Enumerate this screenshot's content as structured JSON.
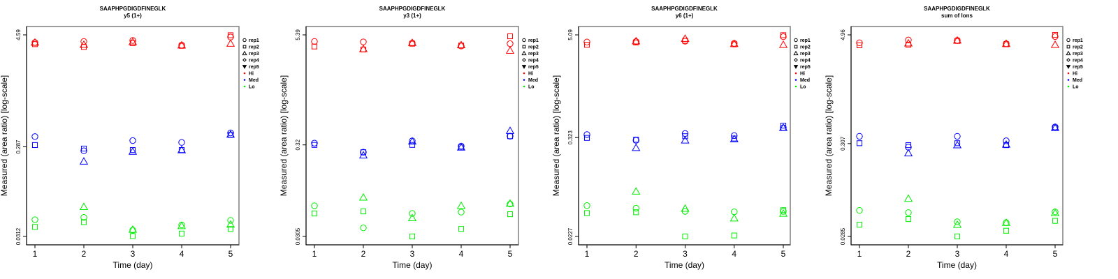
{
  "chart_data": [
    {
      "type": "scatter",
      "title": "SAAPHPGDIGDFINEGLK",
      "subtitle": "y5 (1+)",
      "xlabel": "Time (day)",
      "ylabel": "Measured (area ratio) [log-scale]",
      "y_scale": "log",
      "x_ticks": [
        "1",
        "2",
        "3",
        "4",
        "5"
      ],
      "y_ticks": [
        "4.59",
        "0.287",
        "0.0312"
      ],
      "y_tick_values": [
        4.59,
        0.287,
        0.0312
      ],
      "legend_position": "right",
      "legend": [
        "rep1",
        "rep2",
        "rep3",
        "rep4",
        "rep5",
        "Hi",
        "Med",
        "Lo"
      ],
      "series": [
        {
          "name": "Hi rep1",
          "group": "Hi",
          "rep": "rep1",
          "x": [
            1,
            2,
            3,
            4,
            5
          ],
          "y": [
            3.8,
            3.9,
            4.0,
            3.55,
            4.35
          ]
        },
        {
          "name": "Hi rep2",
          "group": "Hi",
          "rep": "rep2",
          "x": [
            1,
            2,
            3,
            4,
            5
          ],
          "y": [
            3.65,
            3.4,
            3.75,
            3.5,
            4.55
          ]
        },
        {
          "name": "Hi rep3",
          "group": "Hi",
          "rep": "rep3",
          "x": [
            1,
            2,
            3,
            4,
            5
          ],
          "y": [
            3.8,
            3.6,
            3.85,
            3.55,
            3.7
          ]
        },
        {
          "name": "Med rep1",
          "group": "Med",
          "rep": "rep1",
          "x": [
            1,
            2,
            3,
            4,
            5
          ],
          "y": [
            0.37,
            0.26,
            0.335,
            0.32,
            0.405
          ]
        },
        {
          "name": "Med rep2",
          "group": "Med",
          "rep": "rep2",
          "x": [
            1,
            2,
            3,
            4,
            5
          ],
          "y": [
            0.3,
            0.275,
            0.265,
            0.265,
            0.385
          ]
        },
        {
          "name": "Med rep3",
          "group": "Med",
          "rep": "rep3",
          "x": [
            1,
            2,
            3,
            4,
            5
          ],
          "y": [
            null,
            0.2,
            0.255,
            0.265,
            0.39
          ]
        },
        {
          "name": "Lo rep1",
          "group": "Lo",
          "rep": "rep1",
          "x": [
            1,
            2,
            3,
            4,
            5
          ],
          "y": [
            0.0472,
            0.05,
            0.0365,
            0.0415,
            0.0465
          ]
        },
        {
          "name": "Lo rep2",
          "group": "Lo",
          "rep": "rep2",
          "x": [
            1,
            2,
            3,
            4,
            5
          ],
          "y": [
            0.0395,
            0.0445,
            0.0315,
            0.0335,
            0.0375
          ]
        },
        {
          "name": "Lo rep3",
          "group": "Lo",
          "rep": "rep3",
          "x": [
            1,
            2,
            3,
            4,
            5
          ],
          "y": [
            null,
            0.065,
            0.037,
            0.0405,
            0.042
          ]
        }
      ]
    },
    {
      "type": "scatter",
      "title": "SAAPHPGDIGDFINEGLK",
      "subtitle": "y3 (1+)",
      "xlabel": "Time (day)",
      "ylabel": "Measured (area ratio) [log-scale]",
      "y_scale": "log",
      "x_ticks": [
        "1",
        "2",
        "3",
        "4",
        "5"
      ],
      "y_ticks": [
        "5.39",
        "0.32",
        "0.0305"
      ],
      "y_tick_values": [
        5.39,
        0.32,
        0.0305
      ],
      "legend_position": "right",
      "legend": [
        "rep1",
        "rep2",
        "rep3",
        "rep4",
        "rep5",
        "Hi",
        "Med",
        "Lo"
      ],
      "series": [
        {
          "name": "Hi rep1",
          "group": "Hi",
          "rep": "rep1",
          "x": [
            1,
            2,
            3,
            4,
            5
          ],
          "y": [
            4.55,
            4.5,
            4.35,
            4.05,
            4.3
          ]
        },
        {
          "name": "Hi rep2",
          "group": "Hi",
          "rep": "rep2",
          "x": [
            1,
            2,
            3,
            4,
            5
          ],
          "y": [
            4.0,
            3.7,
            4.3,
            4.1,
            5.2
          ]
        },
        {
          "name": "Hi rep3",
          "group": "Hi",
          "rep": "rep3",
          "x": [
            1,
            2,
            3,
            4,
            5
          ],
          "y": [
            null,
            3.75,
            4.4,
            4.15,
            3.6
          ]
        },
        {
          "name": "Med rep1",
          "group": "Med",
          "rep": "rep1",
          "x": [
            1,
            2,
            3,
            4,
            5
          ],
          "y": [
            0.335,
            0.265,
            0.355,
            0.31,
            0.4
          ]
        },
        {
          "name": "Med rep2",
          "group": "Med",
          "rep": "rep2",
          "x": [
            1,
            2,
            3,
            4,
            5
          ],
          "y": [
            0.32,
            0.265,
            0.32,
            0.3,
            0.4
          ]
        },
        {
          "name": "Med rep3",
          "group": "Med",
          "rep": "rep3",
          "x": [
            1,
            2,
            3,
            4,
            5
          ],
          "y": [
            null,
            0.245,
            0.35,
            0.3,
            0.46
          ]
        },
        {
          "name": "Lo rep1",
          "group": "Lo",
          "rep": "rep1",
          "x": [
            1,
            2,
            3,
            4,
            5
          ],
          "y": [
            0.067,
            0.038,
            0.055,
            0.057,
            0.07
          ]
        },
        {
          "name": "Lo rep2",
          "group": "Lo",
          "rep": "rep2",
          "x": [
            1,
            2,
            3,
            4,
            5
          ],
          "y": [
            0.055,
            0.058,
            0.0305,
            0.037,
            0.054
          ]
        },
        {
          "name": "Lo rep3",
          "group": "Lo",
          "rep": "rep3",
          "x": [
            1,
            2,
            3,
            4,
            5
          ],
          "y": [
            null,
            0.083,
            0.049,
            0.067,
            0.071
          ]
        }
      ]
    },
    {
      "type": "scatter",
      "title": "SAAPHPGDIGDFINEGLK",
      "subtitle": "y6 (1+)",
      "xlabel": "Time (day)",
      "ylabel": "Measured (area ratio) [log-scale]",
      "y_scale": "log",
      "x_ticks": [
        "1",
        "2",
        "3",
        "4",
        "5"
      ],
      "y_ticks": [
        "5.09",
        "0.323",
        "0.0227"
      ],
      "y_tick_values": [
        5.09,
        0.323,
        0.0227
      ],
      "legend_position": "right",
      "legend": [
        "rep1",
        "rep2",
        "rep3",
        "rep4",
        "rep5",
        "Hi",
        "Med",
        "Lo"
      ],
      "series": [
        {
          "name": "Hi rep1",
          "group": "Hi",
          "rep": "rep1",
          "x": [
            1,
            2,
            3,
            4,
            5
          ],
          "y": [
            4.2,
            4.25,
            4.3,
            4.05,
            4.85
          ]
        },
        {
          "name": "Hi rep2",
          "group": "Hi",
          "rep": "rep2",
          "x": [
            1,
            2,
            3,
            4,
            5
          ],
          "y": [
            3.9,
            4.15,
            4.35,
            3.95,
            5.05
          ]
        },
        {
          "name": "Hi rep3",
          "group": "Hi",
          "rep": "rep3",
          "x": [
            1,
            2,
            3,
            4,
            5
          ],
          "y": [
            null,
            4.3,
            4.6,
            4.0,
            3.9
          ]
        },
        {
          "name": "Med rep1",
          "group": "Med",
          "rep": "rep1",
          "x": [
            1,
            2,
            3,
            4,
            5
          ],
          "y": [
            0.35,
            0.3,
            0.36,
            0.34,
            0.42
          ]
        },
        {
          "name": "Med rep2",
          "group": "Med",
          "rep": "rep2",
          "x": [
            1,
            2,
            3,
            4,
            5
          ],
          "y": [
            0.32,
            0.305,
            0.335,
            0.315,
            0.445
          ]
        },
        {
          "name": "Med rep3",
          "group": "Med",
          "rep": "rep3",
          "x": [
            1,
            2,
            3,
            4,
            5
          ],
          "y": [
            null,
            0.245,
            0.3,
            0.31,
            0.42
          ]
        },
        {
          "name": "Lo rep1",
          "group": "Lo",
          "rep": "rep1",
          "x": [
            1,
            2,
            3,
            4,
            5
          ],
          "y": [
            0.052,
            0.0485,
            0.0445,
            0.044,
            0.0445
          ]
        },
        {
          "name": "Lo rep2",
          "group": "Lo",
          "rep": "rep2",
          "x": [
            1,
            2,
            3,
            4,
            5
          ],
          "y": [
            0.0425,
            0.0435,
            0.0227,
            0.0233,
            0.046
          ]
        },
        {
          "name": "Lo rep3",
          "group": "Lo",
          "rep": "rep3",
          "x": [
            1,
            2,
            3,
            4,
            5
          ],
          "y": [
            null,
            0.076,
            0.048,
            0.037,
            0.042
          ]
        }
      ]
    },
    {
      "type": "scatter",
      "title": "SAAPHPGDIGDFINEGLK",
      "subtitle": "sum of Ions",
      "xlabel": "Time (day)",
      "ylabel": "Measured (area ratio) [log-scale]",
      "y_scale": "log",
      "x_ticks": [
        "1",
        "2",
        "3",
        "4",
        "5"
      ],
      "y_ticks": [
        "4.96",
        "0.307",
        "0.0285"
      ],
      "y_tick_values": [
        4.96,
        0.307,
        0.0285
      ],
      "legend_position": "right",
      "legend": [
        "rep1",
        "rep2",
        "rep3",
        "rep4",
        "rep5",
        "Hi",
        "Med",
        "Lo"
      ],
      "series": [
        {
          "name": "Hi rep1",
          "group": "Hi",
          "rep": "rep1",
          "x": [
            1,
            2,
            3,
            4,
            5
          ],
          "y": [
            4.05,
            4.35,
            4.3,
            3.95,
            4.75
          ]
        },
        {
          "name": "Hi rep2",
          "group": "Hi",
          "rep": "rep2",
          "x": [
            1,
            2,
            3,
            4,
            5
          ],
          "y": [
            3.8,
            3.85,
            4.25,
            3.9,
            4.95
          ]
        },
        {
          "name": "Hi rep3",
          "group": "Hi",
          "rep": "rep3",
          "x": [
            1,
            2,
            3,
            4,
            5
          ],
          "y": [
            null,
            4.0,
            4.3,
            3.95,
            3.85
          ]
        },
        {
          "name": "Med rep1",
          "group": "Med",
          "rep": "rep1",
          "x": [
            1,
            2,
            3,
            4,
            5
          ],
          "y": [
            0.37,
            0.28,
            0.37,
            0.33,
            0.47
          ]
        },
        {
          "name": "Med rep2",
          "group": "Med",
          "rep": "rep2",
          "x": [
            1,
            2,
            3,
            4,
            5
          ],
          "y": [
            0.31,
            0.295,
            0.31,
            0.295,
            0.46
          ]
        },
        {
          "name": "Med rep3",
          "group": "Med",
          "rep": "rep3",
          "x": [
            1,
            2,
            3,
            4,
            5
          ],
          "y": [
            null,
            0.24,
            0.295,
            0.3,
            0.46
          ]
        },
        {
          "name": "Lo rep1",
          "group": "Lo",
          "rep": "rep1",
          "x": [
            1,
            2,
            3,
            4,
            5
          ],
          "y": [
            0.0555,
            0.0525,
            0.0415,
            0.0405,
            0.0535
          ]
        },
        {
          "name": "Lo rep2",
          "group": "Lo",
          "rep": "rep2",
          "x": [
            1,
            2,
            3,
            4,
            5
          ],
          "y": [
            0.0385,
            0.0445,
            0.0285,
            0.033,
            0.0425
          ]
        },
        {
          "name": "Lo rep3",
          "group": "Lo",
          "rep": "rep3",
          "x": [
            1,
            2,
            3,
            4,
            5
          ],
          "y": [
            null,
            0.075,
            0.0385,
            0.0405,
            0.052
          ]
        }
      ]
    }
  ],
  "colors": {
    "Hi": "#ff0000",
    "Med": "#0000ff",
    "Lo": "#00ee00",
    "axis": "#000000",
    "frame": "#7f7f7f"
  },
  "legend_items": [
    {
      "label": "rep1",
      "symbol": "circle"
    },
    {
      "label": "rep2",
      "symbol": "square"
    },
    {
      "label": "rep3",
      "symbol": "triangle-up"
    },
    {
      "label": "rep4",
      "symbol": "diamond"
    },
    {
      "label": "rep5",
      "symbol": "triangle-down"
    },
    {
      "label": "Hi",
      "symbol": "dot",
      "group": "Hi"
    },
    {
      "label": "Med",
      "symbol": "dot",
      "group": "Med"
    },
    {
      "label": "Lo",
      "symbol": "dot",
      "group": "Lo"
    }
  ]
}
